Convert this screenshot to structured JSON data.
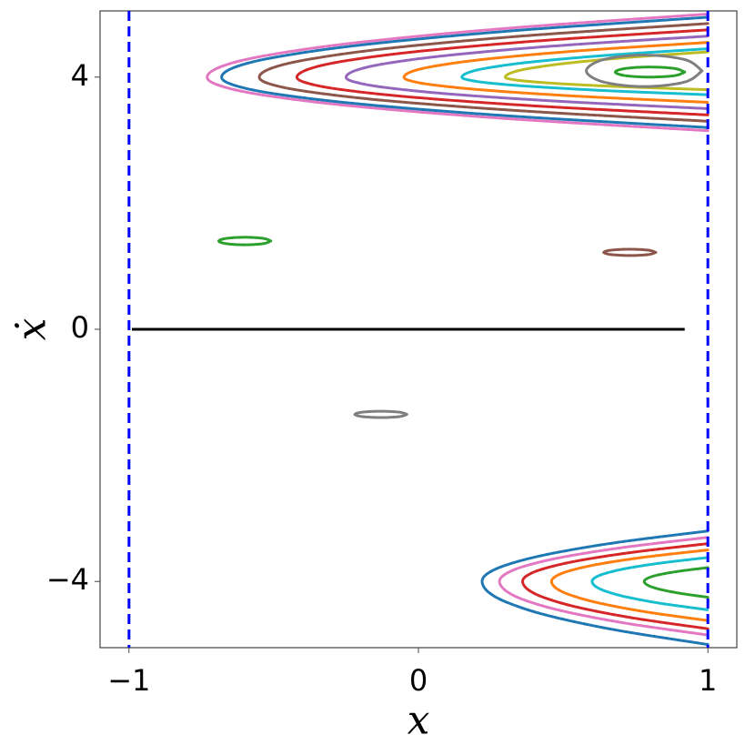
{
  "chart_data": {
    "type": "line",
    "xlabel": "x",
    "ylabel": "ẋ",
    "xlim": [
      -1.1,
      1.1
    ],
    "ylim": [
      -5.05,
      5.05
    ],
    "xticks": [
      {
        "value": -1,
        "label": "−1"
      },
      0,
      1
    ],
    "yticks": [
      {
        "value": -4,
        "label": "−4"
      },
      0,
      4
    ],
    "vlines": [
      {
        "x": -1,
        "color": "#0000ff"
      },
      {
        "x": 1,
        "color": "#0000ff"
      }
    ],
    "hline": {
      "y": 0,
      "xmin": -0.99,
      "xmax": 0.92,
      "color": "#000000"
    },
    "series": [
      {
        "color": "#e377c2",
        "x": [
          1.0,
          0.308,
          -0.211,
          -0.522,
          -0.678,
          -0.73,
          -0.678,
          -0.522,
          -0.211,
          0.308,
          1.0
        ],
        "y": [
          5.0,
          4.775,
          4.548,
          4.346,
          4.173,
          4.0,
          3.853,
          3.706,
          3.534,
          3.341,
          3.15
        ]
      },
      {
        "color": "#1f77b4",
        "x": [
          1.0,
          0.328,
          -0.176,
          -0.478,
          -0.63,
          -0.68,
          -0.63,
          -0.478,
          -0.176,
          0.328,
          1.0
        ],
        "y": [
          4.95,
          4.736,
          4.521,
          4.329,
          4.164,
          4.0,
          3.862,
          3.723,
          3.562,
          3.38,
          3.2
        ]
      },
      {
        "color": "#8c564b",
        "x": [
          1.0,
          0.38,
          -0.085,
          -0.364,
          -0.504,
          -0.55,
          -0.504,
          -0.364,
          -0.085,
          0.38,
          1.0
        ],
        "y": [
          4.85,
          4.659,
          4.466,
          4.294,
          4.147,
          4.0,
          3.879,
          3.758,
          3.616,
          3.458,
          3.3
        ]
      },
      {
        "color": "#d62728",
        "x": [
          1.0,
          0.432,
          0.006,
          -0.25,
          -0.377,
          -0.42,
          -0.377,
          -0.25,
          0.006,
          0.432,
          1.0
        ],
        "y": [
          4.75,
          4.581,
          4.411,
          4.26,
          4.13,
          4.0,
          3.896,
          3.792,
          3.671,
          3.535,
          3.4
        ]
      },
      {
        "color": "#9467bd",
        "x": [
          1.0,
          0.5,
          0.125,
          -0.1,
          -0.213,
          -0.25,
          -0.213,
          -0.1,
          0.125,
          0.5,
          1.0
        ],
        "y": [
          4.65,
          4.504,
          4.356,
          4.225,
          4.112,
          4.0,
          3.914,
          3.827,
          3.726,
          3.613,
          3.5
        ]
      },
      {
        "color": "#ff7f0e",
        "x": [
          1.0,
          0.58,
          0.265,
          0.076,
          -0.019,
          -0.05,
          -0.019,
          0.076,
          0.265,
          0.58,
          1.0
        ],
        "y": [
          4.55,
          4.426,
          4.301,
          4.19,
          4.095,
          4.0,
          3.931,
          3.862,
          3.781,
          3.69,
          3.6
        ]
      },
      {
        "color": "#17becf",
        "x": [
          1.0,
          0.66,
          0.405,
          0.252,
          0.176,
          0.15,
          0.176,
          0.252,
          0.405,
          0.66,
          1.0
        ],
        "y": [
          4.45,
          4.349,
          4.247,
          4.156,
          4.078,
          4.0,
          3.952,
          3.903,
          3.847,
          3.783,
          3.72
        ]
      },
      {
        "color": "#bcbd22",
        "x": [
          1.0,
          0.72,
          0.51,
          0.384,
          0.321,
          0.3,
          0.321,
          0.384,
          0.51,
          0.72,
          1.0
        ],
        "y": [
          4.4,
          4.31,
          4.219,
          4.138,
          4.069,
          4.0,
          3.965,
          3.931,
          3.89,
          3.845,
          3.8
        ]
      },
      {
        "color": "#7f7f7f",
        "x": [
          0.98,
          0.921,
          0.78,
          0.639,
          0.58,
          0.639,
          0.78,
          0.921,
          0.98
        ],
        "y": [
          4.1,
          4.277,
          4.35,
          4.277,
          4.1,
          3.923,
          3.85,
          3.923,
          4.1
        ]
      },
      {
        "color": "#2ca02c",
        "x": [
          0.92,
          0.885,
          0.8,
          0.715,
          0.68,
          0.715,
          0.8,
          0.885,
          0.92
        ],
        "y": [
          4.08,
          4.137,
          4.16,
          4.137,
          4.08,
          4.023,
          4.0,
          4.023,
          4.08
        ]
      },
      {
        "color": "#1f77b4",
        "x": [
          1.0,
          0.688,
          0.454,
          0.314,
          0.243,
          0.22,
          0.243,
          0.314,
          0.454,
          0.688,
          1.0
        ],
        "y": [
          -3.2,
          -3.38,
          -3.562,
          -3.723,
          -3.862,
          -4.0,
          -4.173,
          -4.346,
          -4.548,
          -4.775,
          -5.0
        ]
      },
      {
        "color": "#e377c2",
        "x": [
          1.0,
          0.712,
          0.496,
          0.366,
          0.302,
          0.28,
          0.302,
          0.366,
          0.496,
          0.712,
          1.0
        ],
        "y": [
          -3.3,
          -3.458,
          -3.616,
          -3.758,
          -3.879,
          -4.0,
          -4.147,
          -4.294,
          -4.466,
          -4.659,
          -4.85
        ]
      },
      {
        "color": "#d62728",
        "x": [
          1.0,
          0.744,
          0.552,
          0.437,
          0.379,
          0.36,
          0.379,
          0.437,
          0.552,
          0.744,
          1.0
        ],
        "y": [
          -3.4,
          -3.535,
          -3.671,
          -3.792,
          -3.896,
          -4.0,
          -4.13,
          -4.26,
          -4.411,
          -4.581,
          -4.75
        ]
      },
      {
        "color": "#ff7f0e",
        "x": [
          1.0,
          0.784,
          0.622,
          0.525,
          0.476,
          0.46,
          0.476,
          0.525,
          0.622,
          0.784,
          1.0
        ],
        "y": [
          -3.5,
          -3.613,
          -3.726,
          -3.827,
          -3.914,
          -4.0,
          -4.107,
          -4.215,
          -4.34,
          -4.481,
          -4.62
        ]
      },
      {
        "color": "#17becf",
        "x": [
          1.0,
          0.84,
          0.72,
          0.648,
          0.612,
          0.6,
          0.612,
          0.648,
          0.72,
          0.84,
          1.0
        ],
        "y": [
          -3.62,
          -3.706,
          -3.792,
          -3.869,
          -3.934,
          -4.0,
          -4.078,
          -4.156,
          -4.247,
          -4.349,
          -4.45
        ]
      },
      {
        "color": "#2ca02c",
        "x": [
          1.0,
          0.912,
          0.846,
          0.806,
          0.787,
          0.78,
          0.787,
          0.806,
          0.846,
          0.912,
          1.0
        ],
        "y": [
          -3.78,
          -3.83,
          -3.879,
          -3.924,
          -3.962,
          -4.0,
          -4.043,
          -4.087,
          -4.137,
          -4.194,
          -4.25
        ]
      },
      {
        "color": "#2ca02c",
        "x": [
          -0.51,
          -0.536,
          -0.6,
          -0.664,
          -0.69,
          -0.664,
          -0.6,
          -0.536,
          -0.51
        ],
        "y": [
          1.4,
          1.442,
          1.46,
          1.442,
          1.4,
          1.358,
          1.34,
          1.358,
          1.4
        ]
      },
      {
        "color": "#8c564b",
        "x": [
          0.82,
          0.794,
          0.73,
          0.666,
          0.64,
          0.666,
          0.73,
          0.794,
          0.82
        ],
        "y": [
          1.22,
          1.255,
          1.27,
          1.255,
          1.22,
          1.185,
          1.17,
          1.185,
          1.22
        ]
      },
      {
        "color": "#7f7f7f",
        "x": [
          -0.04,
          -0.066,
          -0.13,
          -0.194,
          -0.22,
          -0.194,
          -0.13,
          -0.066,
          -0.04
        ],
        "y": [
          -1.35,
          -1.315,
          -1.3,
          -1.315,
          -1.35,
          -1.385,
          -1.4,
          -1.385,
          -1.35
        ]
      }
    ]
  }
}
